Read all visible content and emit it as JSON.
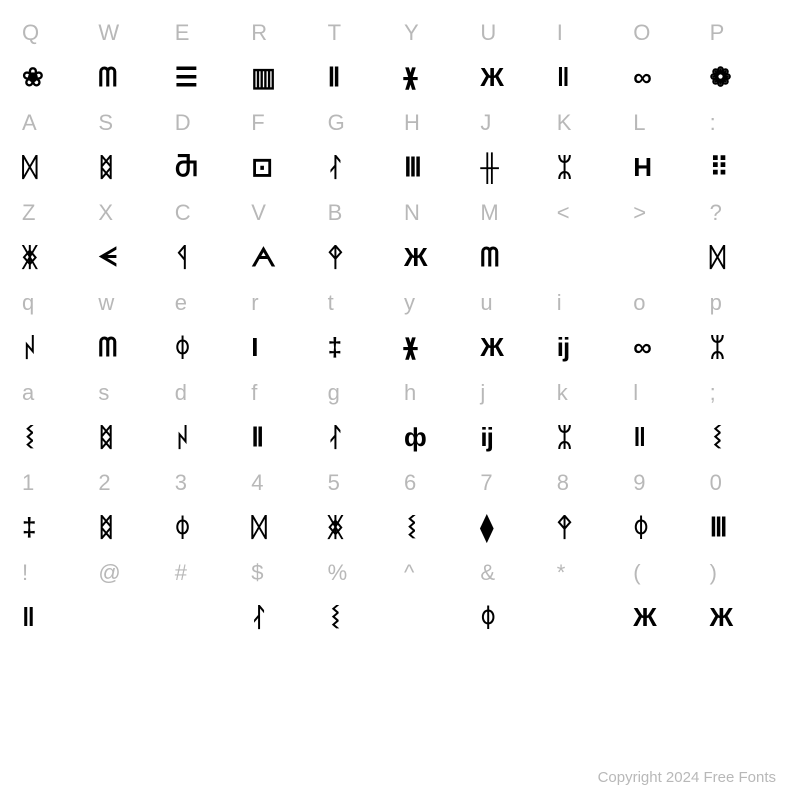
{
  "table": {
    "columns": 10,
    "label_color": "#b8b8b8",
    "glyph_color": "#000000",
    "background_color": "#ffffff",
    "label_fontsize": 22,
    "glyph_fontsize": 26,
    "rows": [
      {
        "type": "label",
        "cells": [
          "Q",
          "W",
          "E",
          "R",
          "T",
          "Y",
          "U",
          "I",
          "O",
          "P"
        ]
      },
      {
        "type": "glyph",
        "cells": [
          "❀",
          "ᗰ",
          "☰",
          "▥",
          "Ⅱ",
          "ᚕ",
          "Ж",
          "‖",
          "∞",
          "❁"
        ]
      },
      {
        "type": "label",
        "cells": [
          "A",
          "S",
          "D",
          "F",
          "G",
          "H",
          "J",
          "K",
          "L",
          ":"
        ]
      },
      {
        "type": "glyph",
        "cells": [
          "ᛞ",
          "ᛥ",
          "Ⴋ",
          "⊡",
          "ᛮ",
          "Ⅲ",
          "╫",
          "ᛯ",
          "H",
          "⠿"
        ]
      },
      {
        "type": "label",
        "cells": [
          "Z",
          "X",
          "C",
          "V",
          "B",
          "N",
          "M",
          "<",
          ">",
          "?"
        ]
      },
      {
        "type": "glyph",
        "cells": [
          "ᛤ",
          "ᗕ",
          "ᛩ",
          "ᗅ",
          "ᛳ",
          "Ж",
          "ᗰ",
          "",
          "",
          "ᛞ"
        ]
      },
      {
        "type": "label",
        "cells": [
          "q",
          "w",
          "e",
          "r",
          "t",
          "y",
          "u",
          "i",
          "o",
          "p"
        ]
      },
      {
        "type": "glyph",
        "cells": [
          "ᛲ",
          "ᗰ",
          "ᛰ",
          "I",
          "‡",
          "ᚕ",
          "Ж",
          "ij",
          "∞",
          "ᛯ"
        ]
      },
      {
        "type": "label",
        "cells": [
          "a",
          "s",
          "d",
          "f",
          "g",
          "h",
          "j",
          "k",
          "l",
          ";"
        ]
      },
      {
        "type": "glyph",
        "cells": [
          "ᛵ",
          "ᛥ",
          "ᛲ",
          "Ⅱ",
          "ᛮ",
          "ф",
          "ij",
          "ᛯ",
          "‖",
          "ᛵ"
        ]
      },
      {
        "type": "label",
        "cells": [
          "1",
          "2",
          "3",
          "4",
          "5",
          "6",
          "7",
          "8",
          "9",
          "0"
        ]
      },
      {
        "type": "glyph",
        "cells": [
          "‡",
          "ᛥ",
          "ᛰ",
          "ᛞ",
          "ᛤ",
          "ᛵ",
          "⧫",
          "ᛳ",
          "ᛰ",
          "Ⅲ"
        ]
      },
      {
        "type": "label",
        "cells": [
          "!",
          "@",
          "#",
          "$",
          "%",
          "^",
          "&",
          "*",
          "(",
          ")"
        ]
      },
      {
        "type": "glyph",
        "cells": [
          "‖",
          "",
          "",
          "ᛮ",
          "ᛵ",
          "",
          "ᛰ",
          "",
          "Ж",
          "Ж"
        ]
      }
    ]
  },
  "footer": {
    "copyright": "Copyright 2024 Free Fonts"
  }
}
